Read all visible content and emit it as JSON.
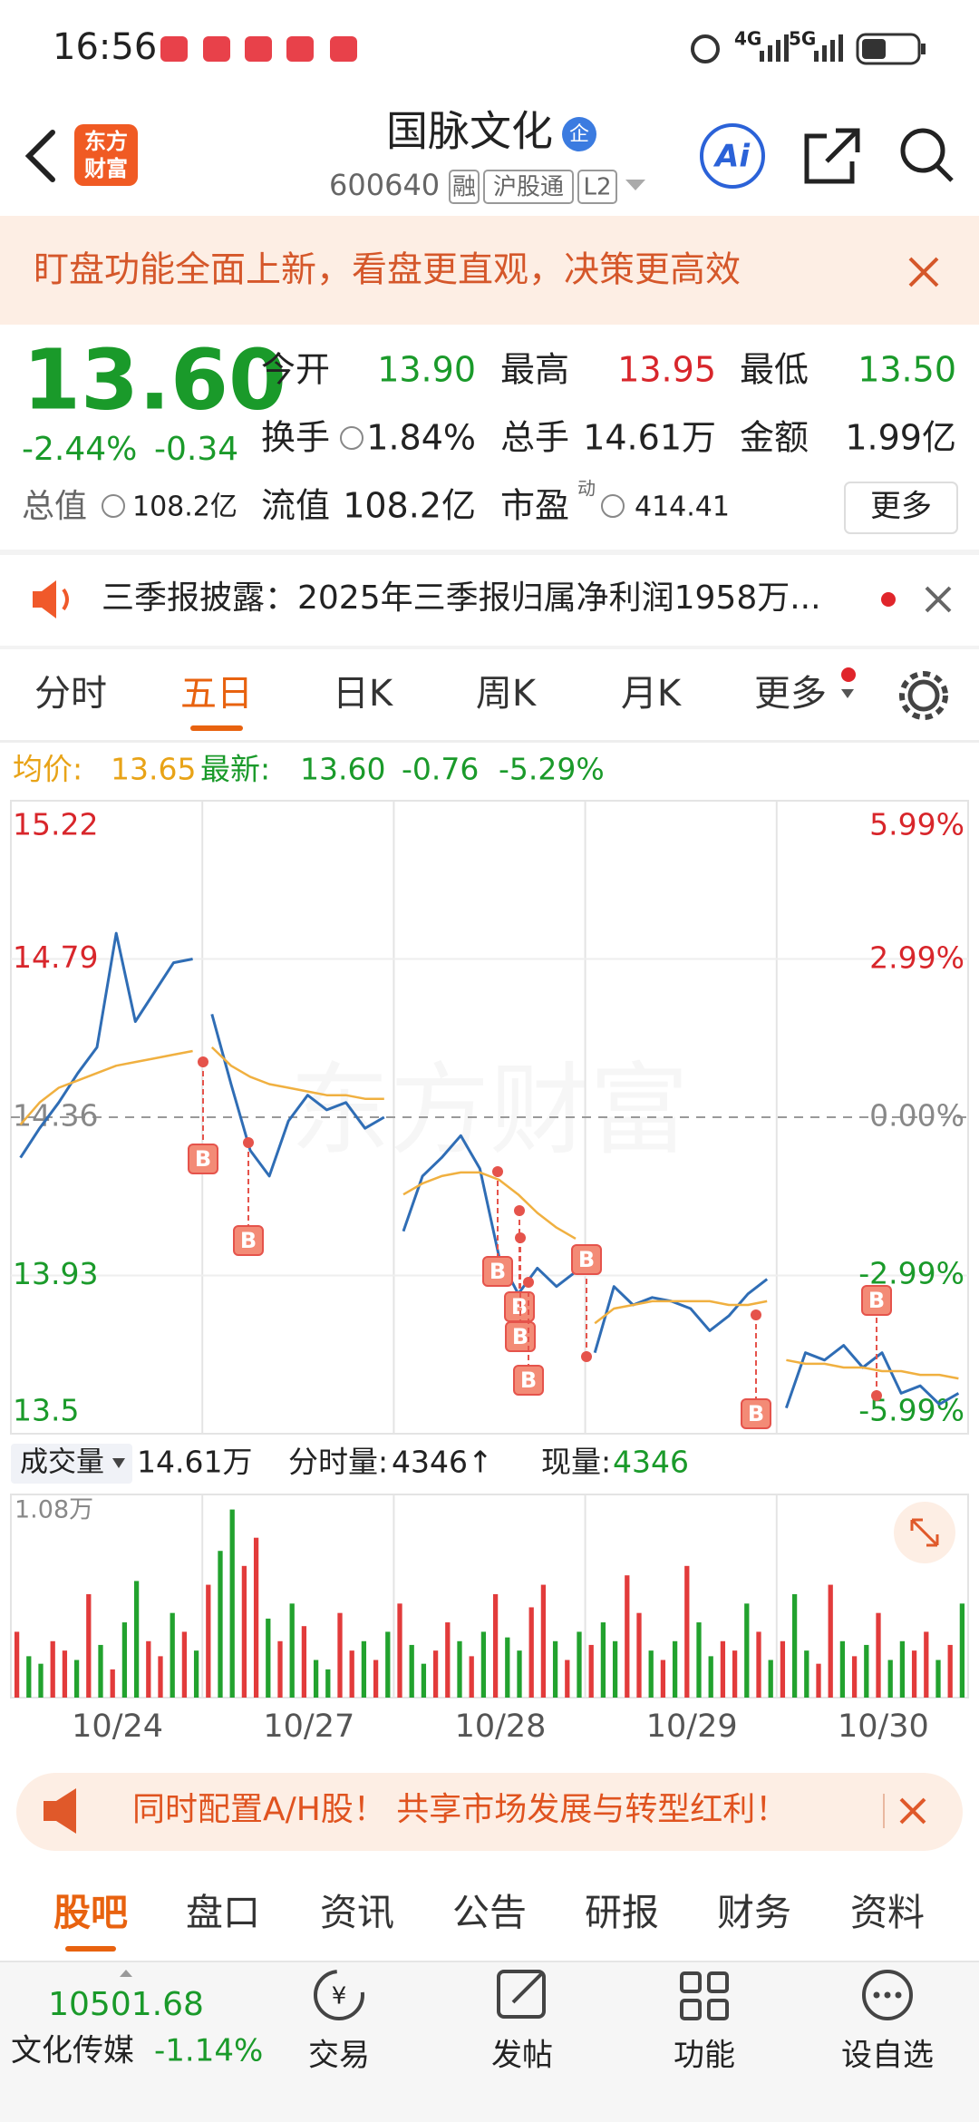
{
  "status_bar": {
    "time": "16:56",
    "net1": "4G",
    "net2": "5G"
  },
  "header": {
    "logo": [
      "东方",
      "财富"
    ],
    "title": "国脉文化",
    "badge": "企",
    "code": "600640",
    "tags": [
      "融",
      "沪股通",
      "L2"
    ],
    "ai": "Ai"
  },
  "banner": {
    "text": "盯盘功能全面上新，看盘更直观，决策更高效"
  },
  "quote": {
    "price": "13.60",
    "change_pct": "-2.44%",
    "change": "-0.34",
    "fields": [
      {
        "label": "今开",
        "value": "13.90"
      },
      {
        "label": "最高",
        "value": "13.95"
      },
      {
        "label": "最低",
        "value": "13.50"
      },
      {
        "label": "换手",
        "value": "1.84%"
      },
      {
        "label": "总手",
        "value": "14.61万"
      },
      {
        "label": "金额",
        "value": "1.99亿"
      },
      {
        "label": "总值",
        "value": "108.2亿"
      },
      {
        "label": "流值",
        "value": "108.2亿"
      },
      {
        "label": "市盈",
        "sup": "动",
        "value": "414.41"
      }
    ],
    "more": "更多"
  },
  "notice": {
    "text": "三季报披露：2025年三季报归属净利润1958万..."
  },
  "tabs": {
    "items": [
      "分时",
      "五日",
      "日K",
      "周K",
      "月K",
      "更多"
    ],
    "active": 1
  },
  "info_line": {
    "avg_label": "均价:",
    "avg": "13.65",
    "last_label": "最新:",
    "last": "13.60",
    "change": "-0.76",
    "change_pct": "-5.29%"
  },
  "watermark": "东方财富",
  "buy_marks": [
    "B",
    "B",
    "B",
    "B",
    "B",
    "B",
    "B",
    "B",
    "B"
  ],
  "chart_data": [
    {
      "type": "line",
      "ylim": [
        13.5,
        15.22
      ],
      "yticks": [
        15.22,
        14.79,
        14.36,
        13.93,
        13.5
      ],
      "y2lim": [
        -5.99,
        5.99
      ],
      "y2ticks": [
        {
          "value": 5.99,
          "label": "5.99%"
        },
        {
          "value": 2.99,
          "label": "2.99%"
        },
        {
          "value": 0.0,
          "label": "0.00%"
        },
        {
          "value": -2.99,
          "label": "-2.99%"
        },
        {
          "value": -5.99,
          "label": "-5.99%"
        }
      ],
      "points_per_day": 10,
      "series": [
        {
          "color": "#2f6db5",
          "values": [
            14.25,
            14.33,
            14.4,
            14.48,
            14.55,
            14.86,
            14.62,
            14.7,
            14.78,
            14.79,
            null,
            14.64,
            14.45,
            14.27,
            14.2,
            14.35,
            14.42,
            14.38,
            14.4,
            14.33,
            14.36,
            null,
            14.05,
            14.2,
            14.25,
            14.31,
            14.22,
            13.98,
            13.88,
            13.95,
            13.9,
            13.94,
            null,
            13.72,
            13.9,
            13.85,
            13.87,
            13.86,
            13.84,
            13.78,
            13.82,
            13.88,
            13.92,
            null,
            13.57,
            13.72,
            13.7,
            13.74,
            13.68,
            13.72,
            13.61,
            13.63,
            13.58,
            13.61
          ]
        },
        {
          "color": "#f0b040",
          "values": [
            14.34,
            14.4,
            14.44,
            14.46,
            14.48,
            14.5,
            14.51,
            14.52,
            14.53,
            14.54,
            null,
            14.55,
            14.5,
            14.47,
            14.45,
            14.44,
            14.43,
            14.42,
            14.42,
            14.41,
            14.41,
            null,
            14.15,
            14.18,
            14.2,
            14.21,
            14.21,
            14.19,
            14.15,
            14.1,
            14.06,
            14.03,
            null,
            13.8,
            13.84,
            13.85,
            13.86,
            13.86,
            13.86,
            13.86,
            13.85,
            13.85,
            13.86,
            null,
            13.7,
            13.69,
            13.69,
            13.68,
            13.68,
            13.67,
            13.67,
            13.66,
            13.66,
            13.65
          ]
        }
      ],
      "x_labels": [
        "10/24",
        "10/27",
        "10/28",
        "10/29",
        "10/30"
      ],
      "grid": true
    },
    {
      "type": "bar",
      "ylim": [
        0,
        1.08
      ],
      "yticks": [
        {
          "value": 1.08,
          "label": "1.08万"
        }
      ],
      "up_color": "#e23b3b",
      "down_color": "#22a22e",
      "values": [
        0.35,
        0.22,
        0.18,
        0.3,
        0.25,
        0.2,
        0.55,
        0.28,
        0.15,
        0.4,
        0.62,
        0.3,
        0.22,
        0.45,
        0.35,
        0.25,
        0.6,
        0.78,
        1.0,
        0.7,
        0.85,
        0.42,
        0.3,
        0.5,
        0.38,
        0.2,
        0.15,
        0.45,
        0.25,
        0.3,
        0.2,
        0.35,
        0.5,
        0.28,
        0.18,
        0.25,
        0.4,
        0.3,
        0.22,
        0.35,
        0.55,
        0.32,
        0.25,
        0.48,
        0.6,
        0.3,
        0.2,
        0.35,
        0.28,
        0.4,
        0.3,
        0.65,
        0.45,
        0.25,
        0.2,
        0.3,
        0.7,
        0.4,
        0.22,
        0.3,
        0.25,
        0.5,
        0.35,
        0.2,
        0.3,
        0.55,
        0.25,
        0.18,
        0.6,
        0.3,
        0.22,
        0.28,
        0.45,
        0.2,
        0.3,
        0.25,
        0.35,
        0.2,
        0.28,
        0.5
      ],
      "directions": [
        1,
        -1,
        -1,
        1,
        1,
        -1,
        1,
        -1,
        1,
        -1,
        -1,
        1,
        1,
        -1,
        1,
        -1,
        1,
        -1,
        -1,
        1,
        1,
        -1,
        1,
        -1,
        1,
        -1,
        -1,
        1,
        1,
        -1,
        1,
        -1,
        1,
        -1,
        -1,
        1,
        1,
        -1,
        1,
        -1,
        1,
        -1,
        -1,
        1,
        1,
        -1,
        1,
        -1,
        1,
        -1,
        -1,
        1,
        1,
        -1,
        1,
        -1,
        1,
        -1,
        -1,
        1,
        1,
        -1,
        1,
        -1,
        1,
        -1,
        -1,
        1,
        1,
        -1,
        1,
        -1,
        1,
        -1,
        -1,
        1,
        1,
        -1,
        1,
        -1
      ]
    }
  ],
  "volume_header": {
    "selector": "成交量",
    "total": "14.61万",
    "tick_label": "分时量:",
    "tick": "4346↑",
    "current_label": "现量:",
    "current": "4346"
  },
  "ad": {
    "text": "同时配置A/H股！ 共享市场发展与转型红利！"
  },
  "bottom_tabs": {
    "items": [
      "股吧",
      "盘口",
      "资讯",
      "公告",
      "研报",
      "财务",
      "资料"
    ],
    "active": 0
  },
  "nav": {
    "index_value": "10501.68",
    "index_name": "文化传媒",
    "index_change": "-1.14%",
    "items": [
      "交易",
      "发帖",
      "功能",
      "设自选"
    ]
  }
}
